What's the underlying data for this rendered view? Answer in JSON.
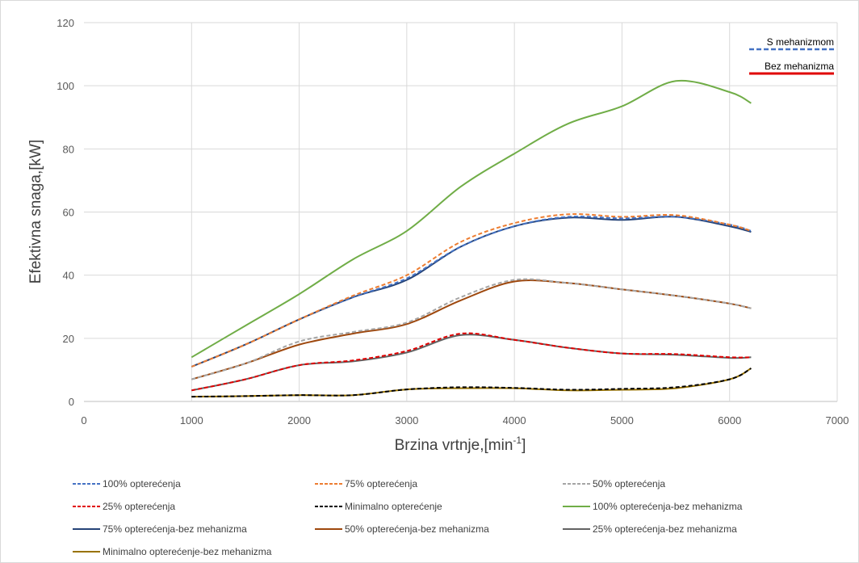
{
  "chart_data": {
    "type": "line",
    "title": "",
    "xlabel": "Brzina vrtnje,[min",
    "xlabel_sup": "-1",
    "xlabel_end": "]",
    "ylabel": "Efektivna snaga,[kW]",
    "xlim": [
      0,
      7000
    ],
    "ylim": [
      0,
      120
    ],
    "x_ticks": [
      "0",
      "1000",
      "2000",
      "3000",
      "4000",
      "5000",
      "6000",
      "7000"
    ],
    "y_ticks": [
      "0",
      "20",
      "40",
      "60",
      "80",
      "100",
      "120"
    ],
    "grid": true,
    "legend_position": "bottom",
    "annotations": [
      {
        "text": "S mehanizmom",
        "color": "#4472c4",
        "dashed": true
      },
      {
        "text": "Bez mehanizma",
        "color": "#e00000",
        "dashed": false
      }
    ],
    "series": [
      {
        "name": "100% opterećenja",
        "color": "#4472c4",
        "dashed": true,
        "x": [
          1000,
          1500,
          2000,
          2500,
          3000,
          3500,
          4000,
          4500,
          5000,
          5500,
          6000,
          6200
        ],
        "y": [
          11,
          18,
          26,
          33,
          39,
          49,
          55.5,
          58.5,
          58,
          58.5,
          56,
          54
        ]
      },
      {
        "name": "75% opterećenja",
        "color": "#ed7d31",
        "dashed": true,
        "x": [
          1000,
          1500,
          2000,
          2500,
          3000,
          3500,
          4000,
          4500,
          5000,
          5500,
          6000,
          6200
        ],
        "y": [
          11,
          18,
          26,
          33.5,
          40,
          50.5,
          56.5,
          59.3,
          58.5,
          59,
          56,
          54
        ]
      },
      {
        "name": "50% opterećenja",
        "color": "#a5a5a5",
        "dashed": true,
        "x": [
          1000,
          1500,
          2000,
          2500,
          3000,
          3500,
          4000,
          4500,
          5000,
          5500,
          6000,
          6200
        ],
        "y": [
          7,
          12,
          19,
          22,
          25,
          33,
          38.5,
          37.5,
          35.5,
          33.5,
          31,
          29.5
        ]
      },
      {
        "name": "25% opterećenja",
        "color": "#e00000",
        "dashed": true,
        "x": [
          1000,
          1500,
          2000,
          2500,
          3000,
          3500,
          4000,
          4500,
          5000,
          5500,
          6000,
          6200
        ],
        "y": [
          3.5,
          7,
          11.5,
          13,
          16,
          21.5,
          19.5,
          17,
          15.2,
          15,
          14,
          14
        ]
      },
      {
        "name": "Minimalno opterećenje",
        "color": "#000000",
        "dashed": true,
        "x": [
          1000,
          1500,
          2000,
          2500,
          3000,
          3500,
          4000,
          4500,
          5000,
          5500,
          6000,
          6200
        ],
        "y": [
          1.5,
          1.7,
          2,
          2,
          3.8,
          4.5,
          4.3,
          3.7,
          4,
          4.5,
          7,
          10.5
        ]
      },
      {
        "name": "100% opterećenja-bez mehanizma",
        "color": "#70ad47",
        "dashed": false,
        "x": [
          1000,
          1500,
          2000,
          2500,
          3000,
          3500,
          4000,
          4500,
          5000,
          5500,
          6000,
          6200
        ],
        "y": [
          14,
          24,
          34,
          45,
          54,
          68,
          78.5,
          88,
          93.5,
          101.5,
          98,
          94.5
        ]
      },
      {
        "name": "75% opterećenja-bez mehanizma",
        "color": "#264478",
        "dashed": false,
        "x": [
          1000,
          1500,
          2000,
          2500,
          3000,
          3500,
          4000,
          4500,
          5000,
          5500,
          6000,
          6200
        ],
        "y": [
          11,
          18,
          26,
          33,
          38.5,
          49,
          55.5,
          58.2,
          57.5,
          58.5,
          55.5,
          53.7
        ]
      },
      {
        "name": "50% opterećenja-bez mehanizma",
        "color": "#9e480e",
        "dashed": false,
        "x": [
          1000,
          1500,
          2000,
          2500,
          3000,
          3500,
          4000,
          4500,
          5000,
          5500,
          6000,
          6200
        ],
        "y": [
          7,
          12,
          18,
          21.5,
          24.5,
          32,
          38,
          37.5,
          35.5,
          33.5,
          31,
          29.5
        ]
      },
      {
        "name": "25% opterećenja-bez mehanizma",
        "color": "#636363",
        "dashed": false,
        "x": [
          1000,
          1500,
          2000,
          2500,
          3000,
          3500,
          4000,
          4500,
          5000,
          5500,
          6000,
          6200
        ],
        "y": [
          3.5,
          7,
          11.5,
          12.7,
          15.5,
          21,
          19.5,
          17,
          15.2,
          14.8,
          13.8,
          14
        ]
      },
      {
        "name": "Minimalno opterećenje-bez mehanizma",
        "color": "#997300",
        "dashed": false,
        "x": [
          1000,
          1500,
          2000,
          2500,
          3000,
          3500,
          4000,
          4500,
          5000,
          5500,
          6000,
          6200
        ],
        "y": [
          1.5,
          1.7,
          2,
          2,
          3.8,
          4.2,
          4.2,
          3.5,
          3.7,
          4.2,
          7,
          10.5
        ]
      }
    ]
  }
}
